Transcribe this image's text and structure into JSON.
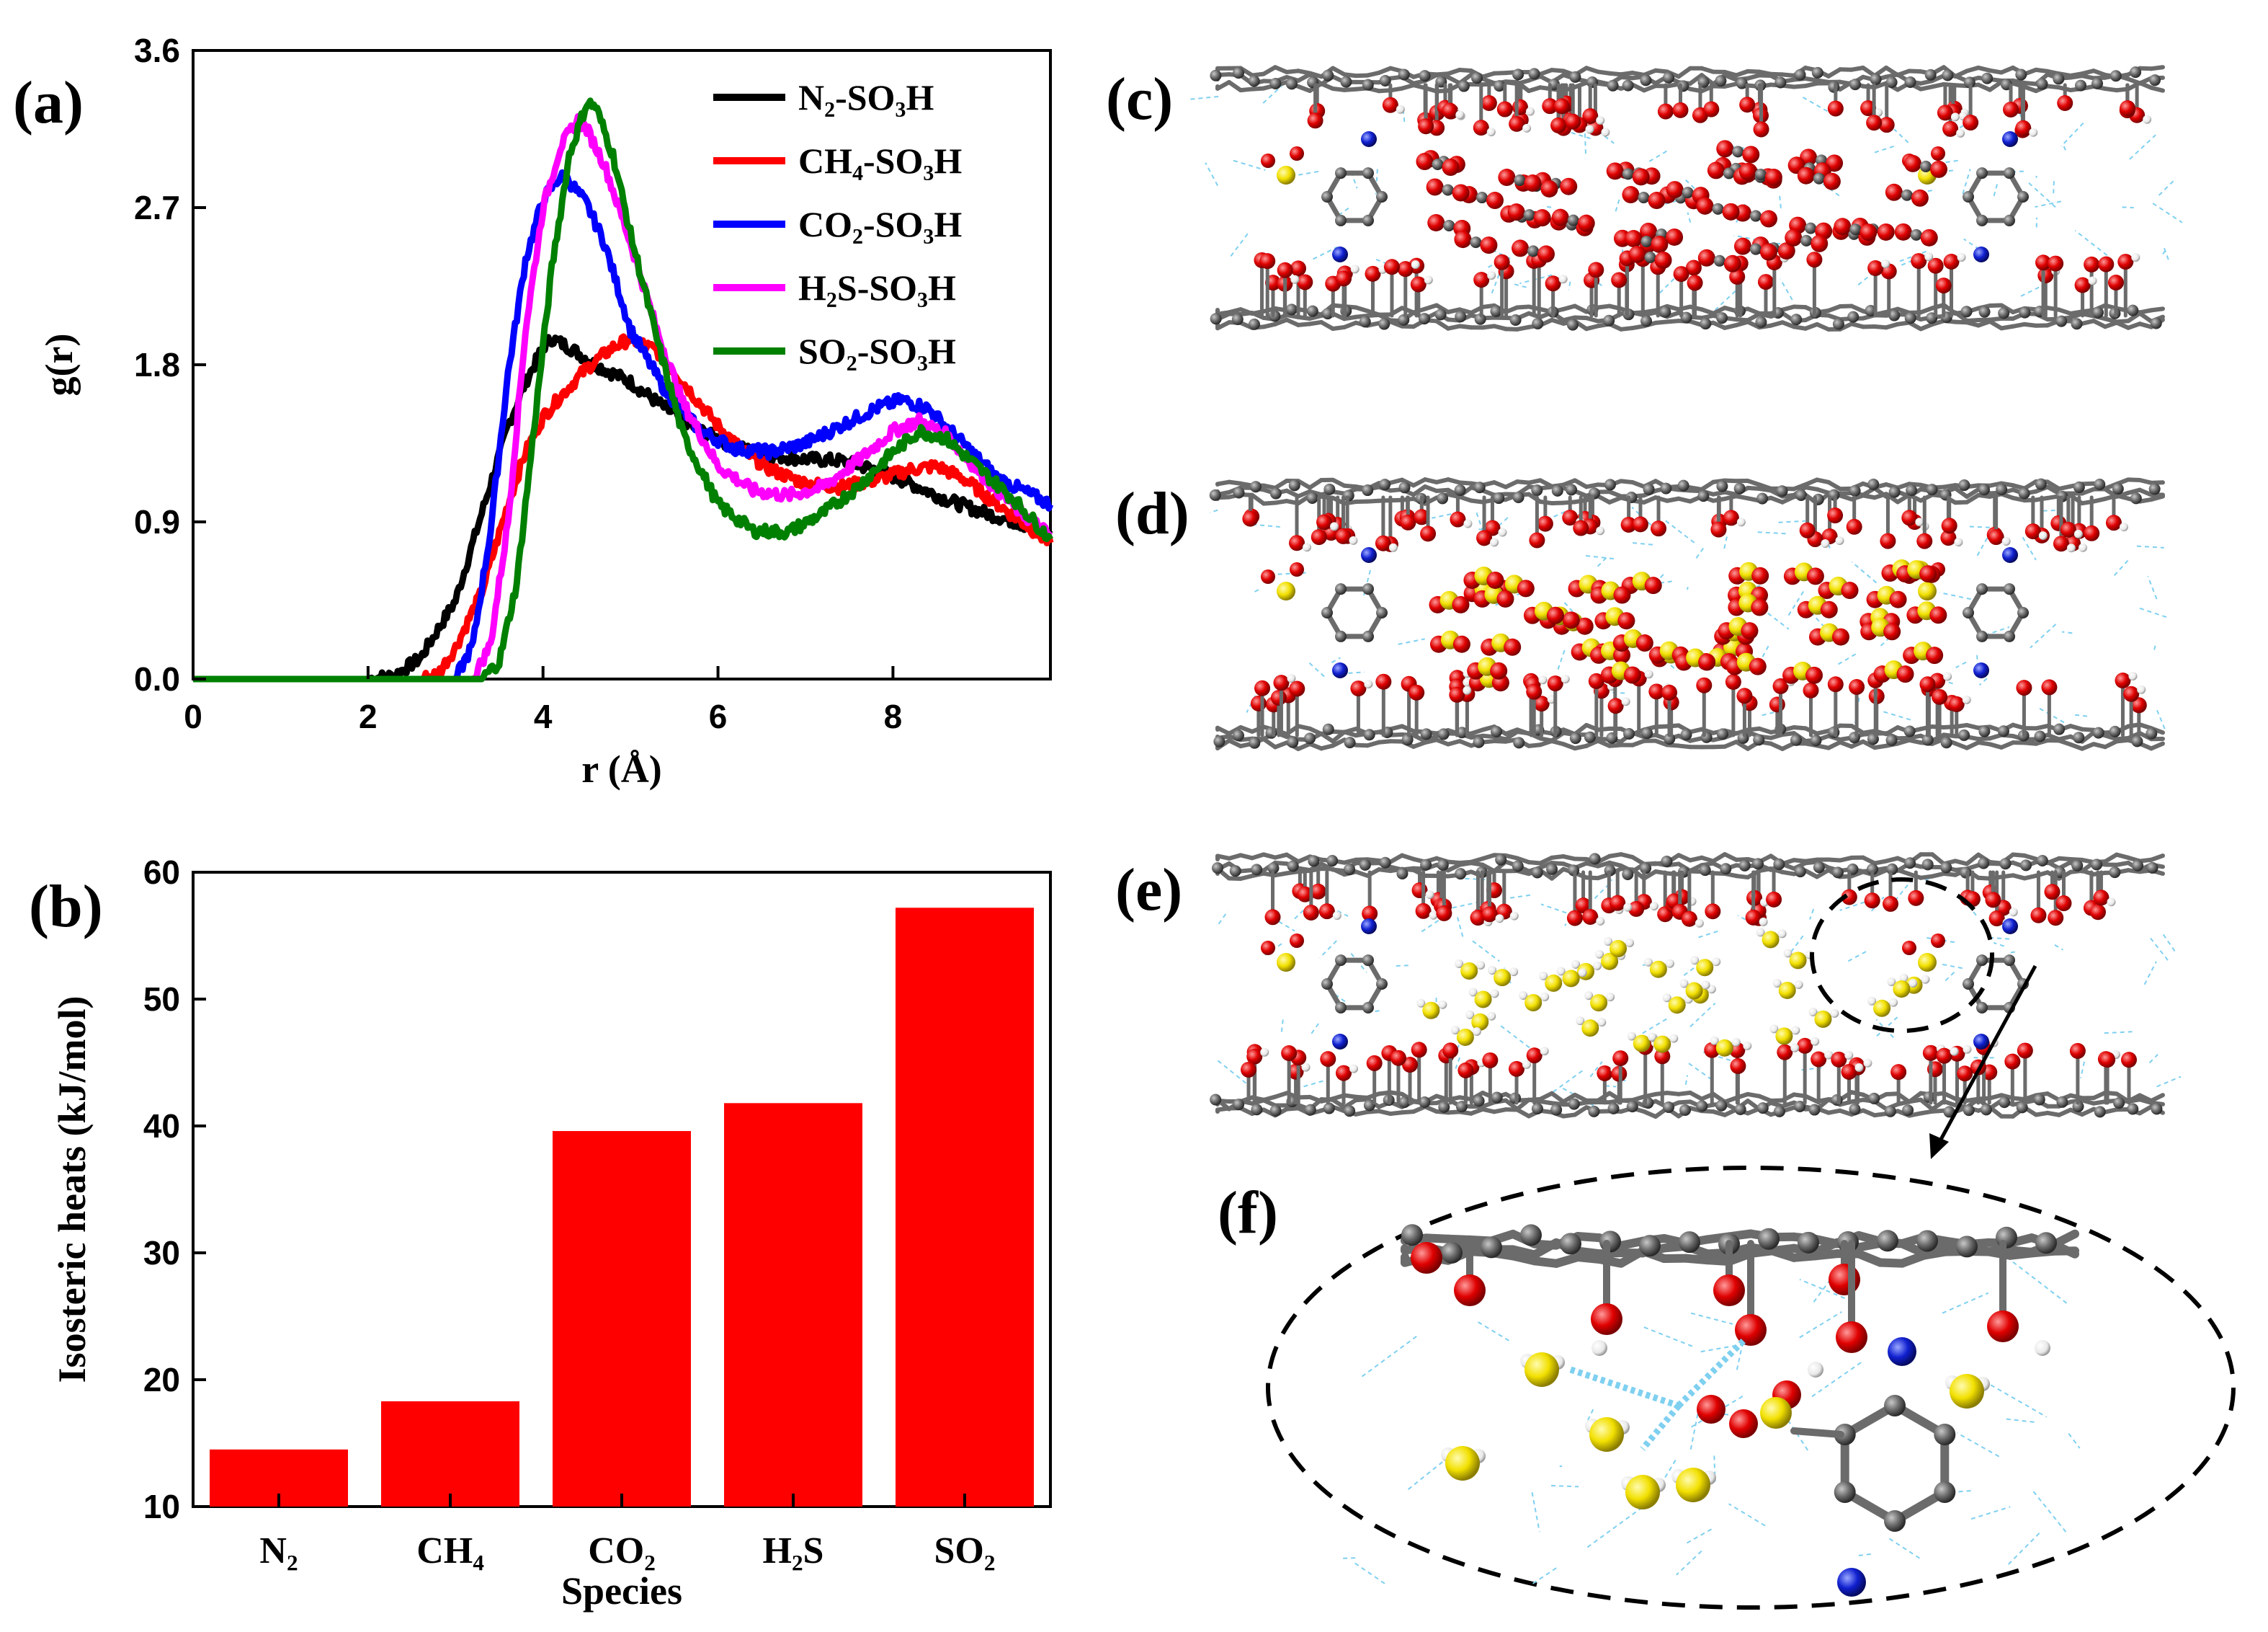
{
  "figure": {
    "panels": {
      "a": "(a)",
      "b": "(b)",
      "c": "(c)",
      "d": "(d)",
      "e": "(e)",
      "f": "(f)"
    },
    "colors": {
      "N2": "#000000",
      "CH4": "#ff0000",
      "CO2": "#0000ff",
      "H2S": "#ff00ff",
      "SO2": "#008000",
      "bar": "#ff0000",
      "carbon": "#6b6b6b",
      "oxygen": "#e00000",
      "sulfur": "#f2e000",
      "nitrogen": "#1020d0",
      "hydrogen": "#f2f2f2",
      "hbond": "#7fd0f0"
    }
  },
  "chart_data": [
    {
      "type": "line",
      "panel": "a",
      "xlabel": "r (Å)",
      "ylabel": "g(r)",
      "xlim": [
        0,
        9.8
      ],
      "ylim": [
        0,
        3.6
      ],
      "xticks": [
        "0",
        "2",
        "4",
        "6",
        "8"
      ],
      "yticks": [
        "0.0",
        "0.9",
        "1.8",
        "2.7",
        "3.6"
      ],
      "legend_position": "top-right",
      "series": [
        {
          "name": "N₂-SO₃H",
          "key": "N2",
          "x": [
            0,
            2.0,
            2.3,
            2.6,
            3.0,
            3.3,
            3.6,
            3.8,
            4.0,
            4.1,
            4.3,
            4.6,
            5.0,
            5.4,
            5.8,
            6.2,
            6.6,
            7.0,
            7.4,
            7.8,
            8.2,
            8.6,
            9.0,
            9.4,
            9.8
          ],
          "values": [
            0,
            0,
            0.02,
            0.12,
            0.45,
            0.95,
            1.45,
            1.7,
            1.9,
            1.95,
            1.9,
            1.8,
            1.7,
            1.55,
            1.42,
            1.33,
            1.28,
            1.26,
            1.25,
            1.2,
            1.12,
            1.03,
            0.96,
            0.9,
            0.83
          ]
        },
        {
          "name": "CH₄-SO₃H",
          "key": "CH4",
          "x": [
            0,
            2.6,
            2.8,
            3.0,
            3.3,
            3.6,
            3.8,
            4.0,
            4.2,
            4.5,
            4.8,
            5.0,
            5.3,
            5.6,
            6.0,
            6.3,
            6.6,
            7.0,
            7.4,
            7.8,
            8.2,
            8.5,
            8.8,
            9.2,
            9.8
          ],
          "values": [
            0,
            0,
            0.03,
            0.18,
            0.5,
            1.0,
            1.3,
            1.5,
            1.62,
            1.78,
            1.9,
            1.95,
            1.88,
            1.7,
            1.45,
            1.3,
            1.2,
            1.12,
            1.1,
            1.14,
            1.2,
            1.22,
            1.15,
            1.0,
            0.78
          ]
        },
        {
          "name": "CO₂-SO₃H",
          "key": "CO2",
          "x": [
            0,
            3.0,
            3.2,
            3.4,
            3.6,
            3.8,
            4.0,
            4.2,
            4.3,
            4.5,
            4.7,
            5.0,
            5.4,
            5.8,
            6.2,
            6.6,
            7.0,
            7.4,
            7.8,
            8.1,
            8.4,
            8.8,
            9.2,
            9.8
          ],
          "values": [
            0,
            0,
            0.2,
            0.85,
            1.75,
            2.4,
            2.75,
            2.88,
            2.85,
            2.72,
            2.5,
            2.0,
            1.65,
            1.42,
            1.32,
            1.3,
            1.35,
            1.45,
            1.55,
            1.6,
            1.55,
            1.35,
            1.15,
            1.0
          ]
        },
        {
          "name": "H₂S-SO₃H",
          "key": "H2S",
          "x": [
            0,
            3.2,
            3.4,
            3.6,
            3.8,
            4.0,
            4.2,
            4.4,
            4.5,
            4.7,
            5.0,
            5.3,
            5.6,
            6.0,
            6.4,
            6.8,
            7.2,
            7.6,
            8.0,
            8.3,
            8.6,
            9.0,
            9.4,
            9.8
          ],
          "values": [
            0,
            0,
            0.2,
            0.9,
            2.0,
            2.7,
            3.05,
            3.2,
            3.15,
            2.95,
            2.5,
            2.0,
            1.58,
            1.22,
            1.08,
            1.05,
            1.1,
            1.25,
            1.42,
            1.48,
            1.4,
            1.18,
            0.98,
            0.82
          ]
        },
        {
          "name": "SO₂-SO₃H",
          "key": "SO2",
          "x": [
            0,
            3.3,
            3.5,
            3.7,
            3.9,
            4.1,
            4.3,
            4.5,
            4.6,
            4.8,
            5.0,
            5.3,
            5.6,
            6.0,
            6.4,
            6.8,
            7.2,
            7.6,
            8.0,
            8.3,
            8.6,
            9.0,
            9.4,
            9.8
          ],
          "values": [
            0,
            0,
            0.1,
            0.55,
            1.45,
            2.35,
            3.0,
            3.3,
            3.28,
            3.0,
            2.55,
            1.95,
            1.4,
            1.0,
            0.85,
            0.84,
            0.95,
            1.1,
            1.3,
            1.42,
            1.38,
            1.2,
            1.02,
            0.8
          ]
        }
      ]
    },
    {
      "type": "bar",
      "panel": "b",
      "xlabel": "Species",
      "ylabel": "Isosteric heats (kJ/mol)",
      "ylim": [
        10,
        60
      ],
      "yticks": [
        "10",
        "20",
        "30",
        "40",
        "50",
        "60"
      ],
      "categories": [
        "N₂",
        "CH₄",
        "CO₂",
        "H₂S",
        "SO₂"
      ],
      "values": [
        14.5,
        18.3,
        39.6,
        41.8,
        57.2
      ]
    }
  ]
}
